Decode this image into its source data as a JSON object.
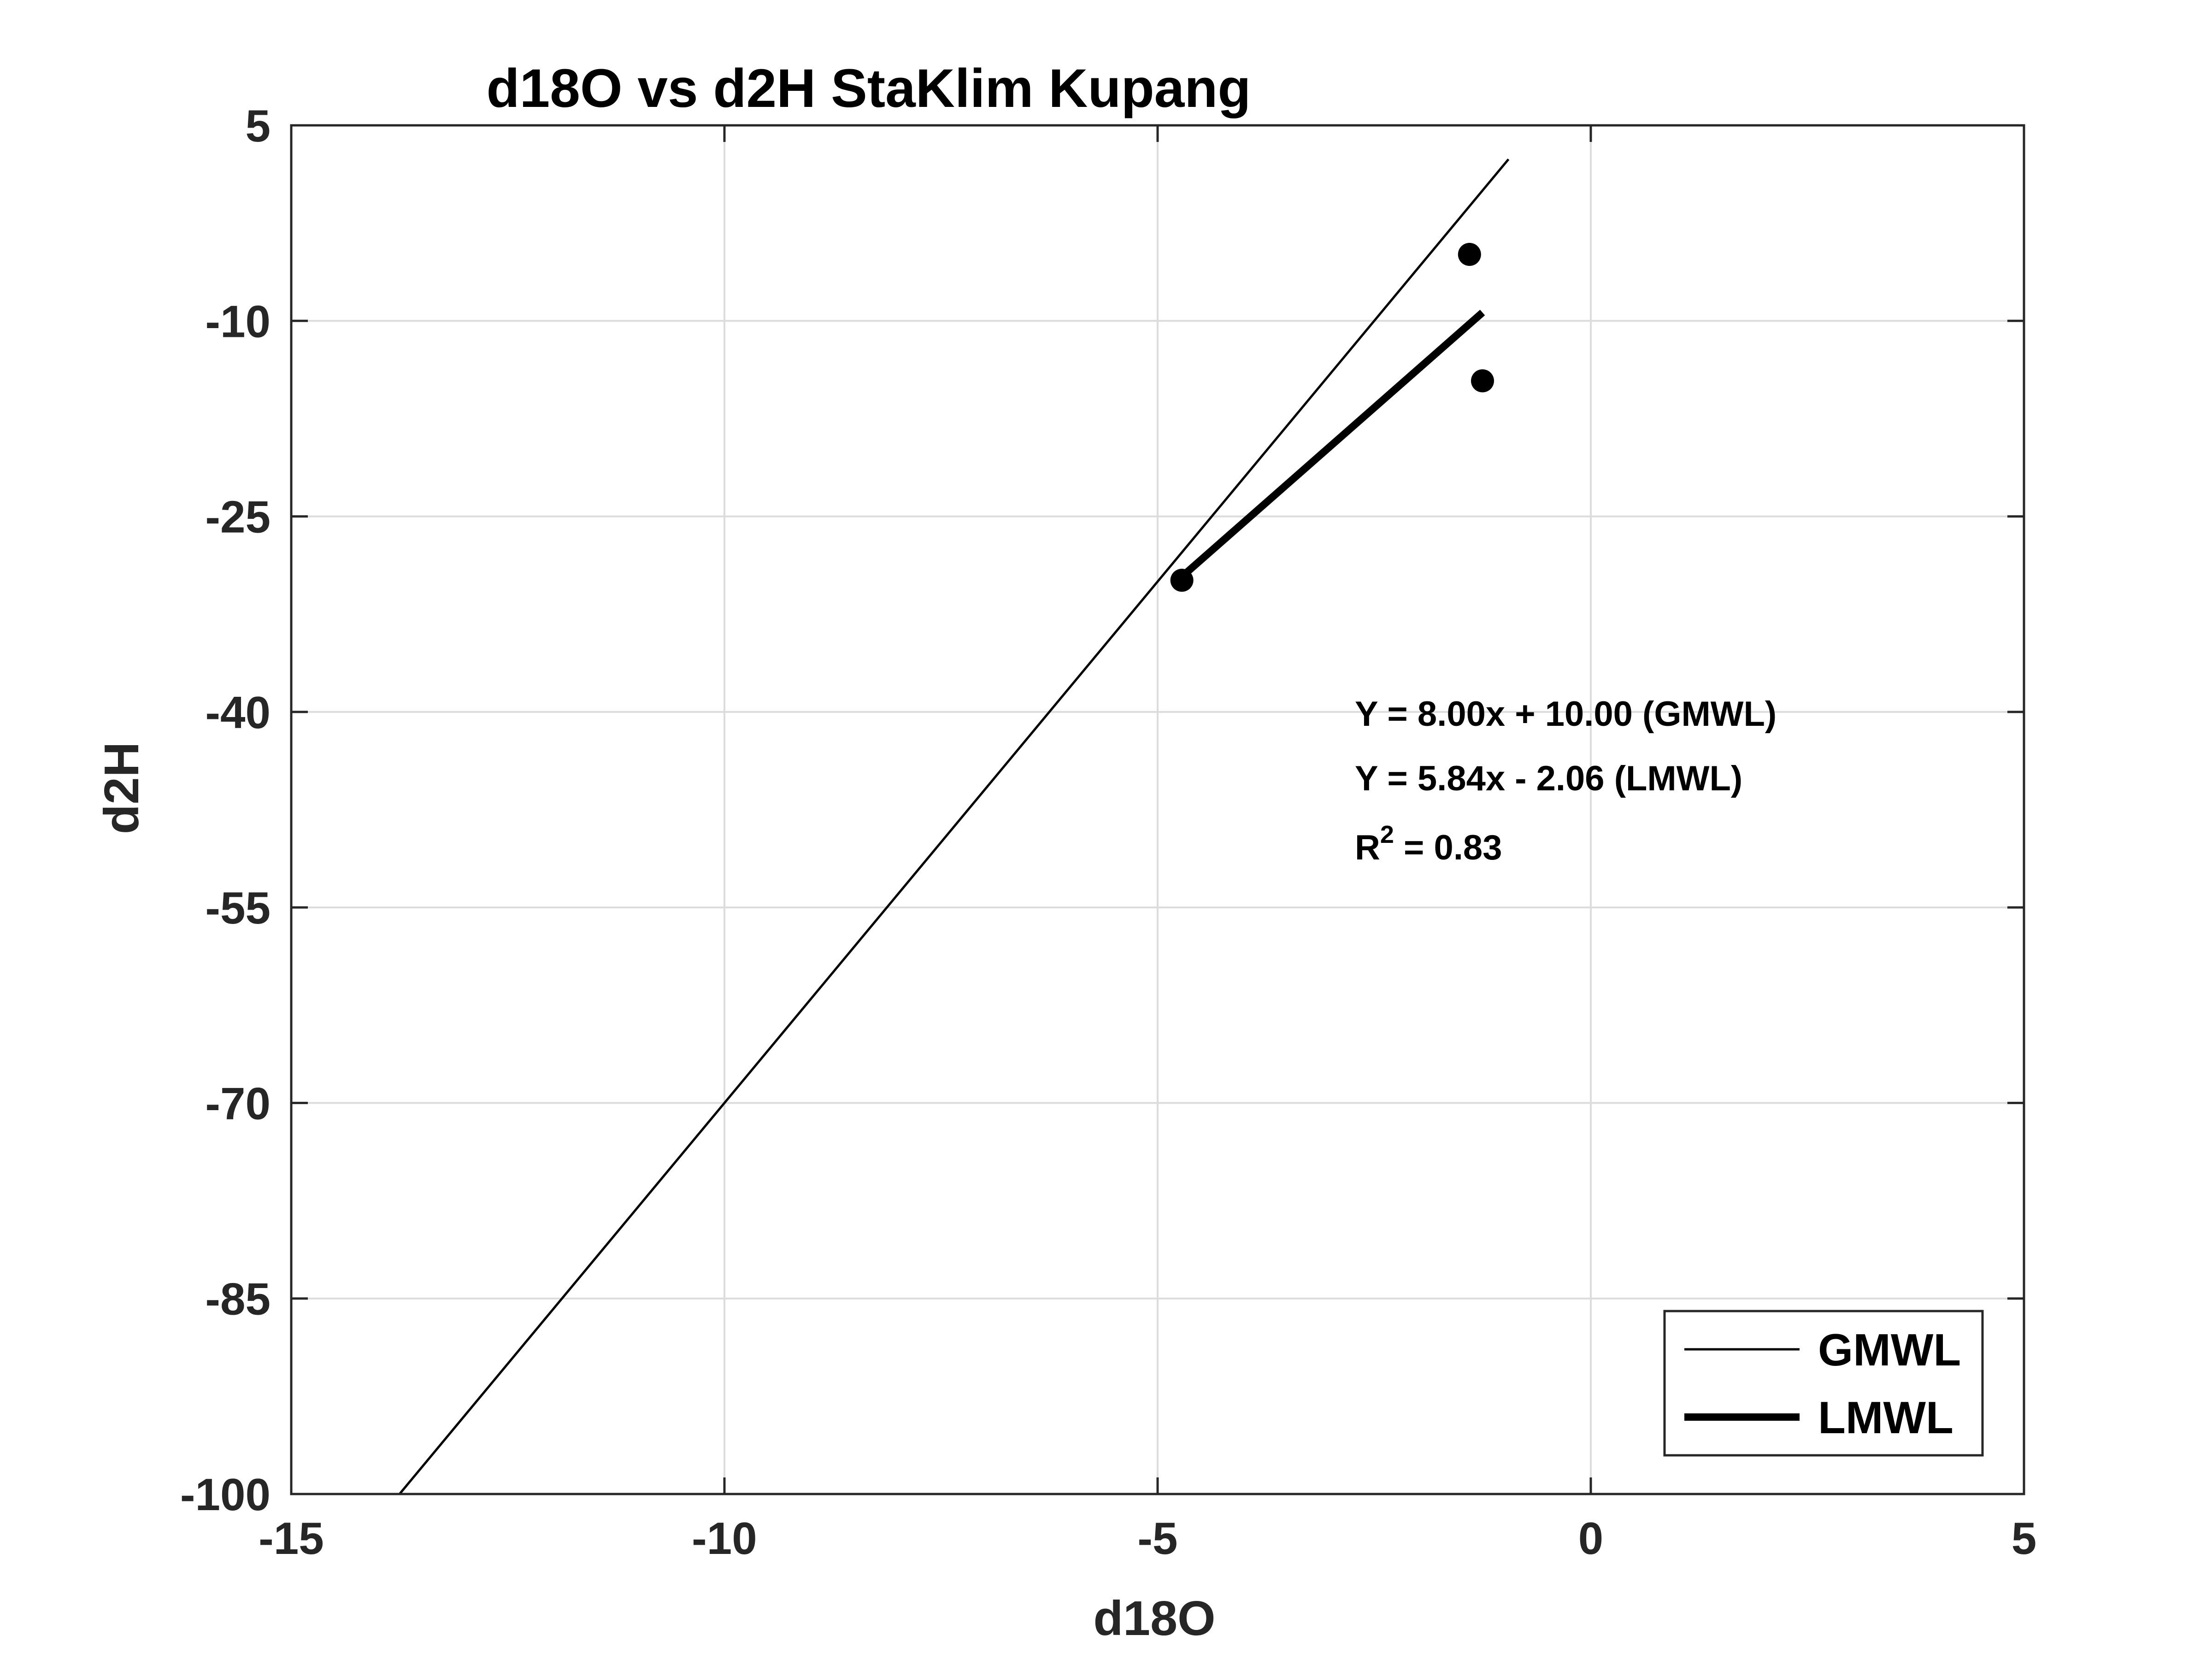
{
  "colors": {
    "background": "#ffffff",
    "axes": "#262626",
    "grid": "#dcdcdc",
    "series": "#000000"
  },
  "chart_data": {
    "type": "scatter",
    "title": "d18O vs d2H StaKlim Kupang",
    "xlabel": "d18O",
    "ylabel": "d2H",
    "xlim": [
      -15,
      5
    ],
    "ylim": [
      -100,
      5
    ],
    "xticks": [
      -15,
      -10,
      -5,
      0,
      5
    ],
    "yticks": [
      5,
      -10,
      -25,
      -40,
      -55,
      -70,
      -85,
      -100
    ],
    "grid": true,
    "points": [
      {
        "x": -4.72,
        "y": -29.9
      },
      {
        "x": -1.4,
        "y": -4.9
      },
      {
        "x": -1.25,
        "y": -14.6
      }
    ],
    "lines": [
      {
        "name": "GMWL",
        "slope": 8.0,
        "intercept": 10.0,
        "x_range": [
          -13.75,
          -0.95
        ],
        "weight": "thin"
      },
      {
        "name": "LMWL",
        "slope": 5.84,
        "intercept": -2.06,
        "x_range": [
          -4.72,
          -1.25
        ],
        "weight": "thick"
      }
    ],
    "annotations": {
      "gmwl_eq": "Y = 8.00x + 10.00 (GMWL)",
      "lmwl_eq": "Y = 5.84x - 2.06 (LMWL)",
      "r2_prefix": "R",
      "r2_sup": "2",
      "r2_value": " = 0.83"
    },
    "legend": {
      "position": "bottom-right",
      "entries": [
        "GMWL",
        "LMWL"
      ]
    }
  }
}
